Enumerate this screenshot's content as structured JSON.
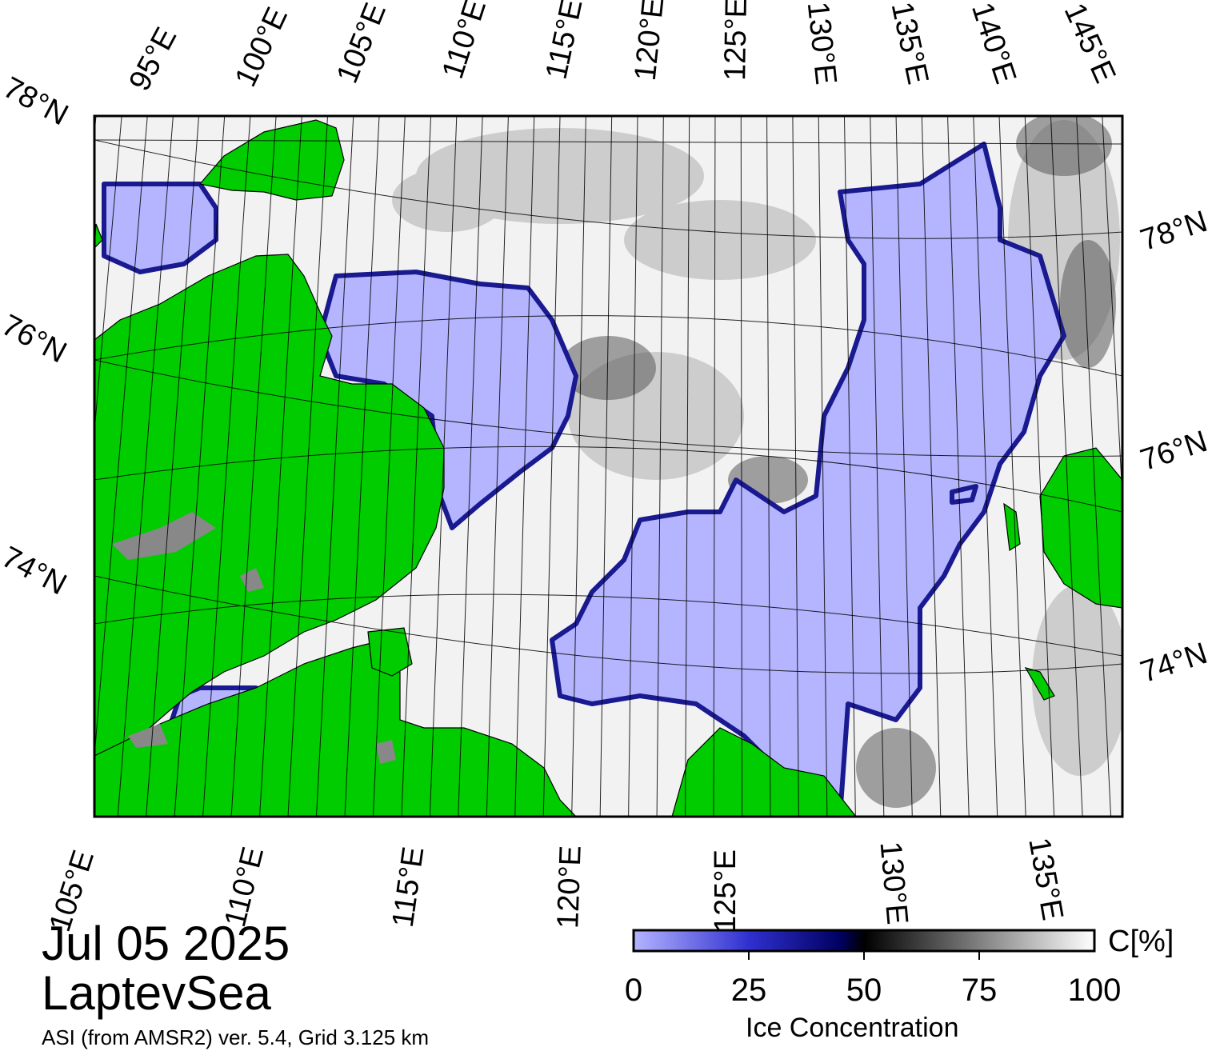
{
  "map": {
    "region": "LaptevSea",
    "top_lon_labels": [
      "95°E",
      "100°E",
      "105°E",
      "110°E",
      "115°E",
      "120°E",
      "125°E",
      "130°E",
      "135°E",
      "140°E",
      "145°E"
    ],
    "bottom_lon_labels": [
      "105°E",
      "110°E",
      "115°E",
      "120°E",
      "125°E",
      "130°E",
      "135°E"
    ],
    "left_lat_labels": [
      "78°N",
      "76°N",
      "74°N"
    ],
    "right_lat_labels": [
      "78°N",
      "76°N",
      "74°N"
    ],
    "colors": {
      "land": "#00cc00",
      "land_ice": "#888888",
      "open_water": "#b4b4ff",
      "ice_edge": "#000080",
      "high_ice": "#ffffff"
    }
  },
  "footer": {
    "date": "Jul 05 2025",
    "region_name": "LaptevSea",
    "source": "ASI (from AMSR2) ver. 5.4,  Grid 3.125 km"
  },
  "colorbar": {
    "unit": "C[%]",
    "title": "Ice Concentration",
    "ticks": [
      "0",
      "25",
      "50",
      "75",
      "100"
    ],
    "range": [
      0,
      100
    ]
  }
}
